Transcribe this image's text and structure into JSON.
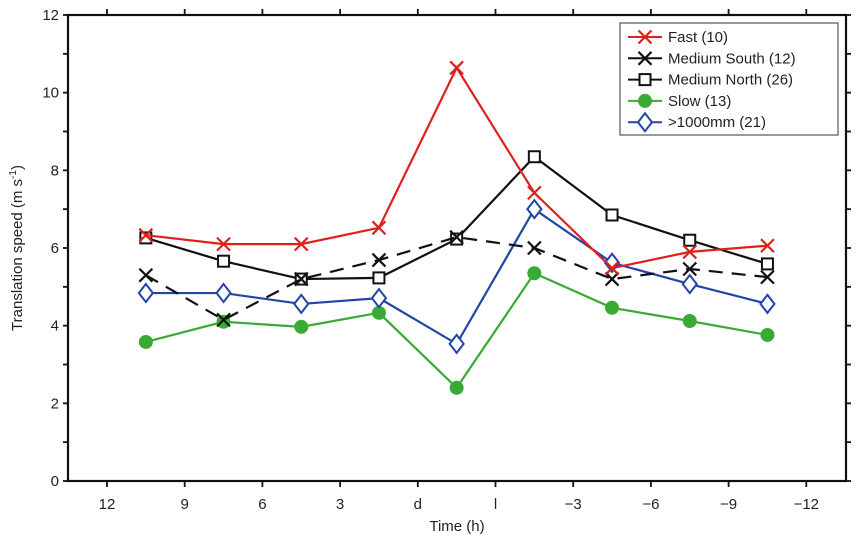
{
  "chart_data": {
    "type": "line",
    "title": "",
    "xlabel": "Time (h)",
    "ylabel": "Translation speed (m s",
    "ylabel_superscript": "-1",
    "ylabel_suffix": ")",
    "ylim": [
      0,
      12
    ],
    "yticks": [
      0,
      2,
      4,
      6,
      8,
      10,
      12
    ],
    "y_minor_step": 1,
    "xtick_labels": [
      "12",
      "9",
      "6",
      "3",
      "d",
      "l",
      "−3",
      "−6",
      "−9",
      "−12"
    ],
    "x_points_between_ticks": true,
    "grid": false,
    "legend_position": "top-right",
    "series": [
      {
        "name": "Fast (10)",
        "color": "#e0201c",
        "marker": "x",
        "dashed": false,
        "values": [
          6.33,
          6.1,
          6.1,
          6.52,
          10.64,
          7.42,
          5.48,
          5.9,
          6.06
        ]
      },
      {
        "name": "Medium South (12)",
        "color": "#111111",
        "marker": "x",
        "dashed": true,
        "values": [
          5.3,
          4.15,
          5.2,
          5.69,
          6.28,
          6.0,
          5.2,
          5.46,
          5.25
        ]
      },
      {
        "name": "Medium North (26)",
        "color": "#111111",
        "marker": "square",
        "dashed": false,
        "values": [
          6.26,
          5.66,
          5.2,
          5.23,
          6.23,
          8.35,
          6.85,
          6.2,
          5.59
        ]
      },
      {
        "name": "Slow (13)",
        "color": "#3aaa35",
        "marker": "circle",
        "dashed": false,
        "values": [
          3.58,
          4.1,
          3.97,
          4.33,
          2.4,
          5.35,
          4.46,
          4.12,
          3.76
        ]
      },
      {
        "name": ">1000mm (21)",
        "color": "#2344a8",
        "marker": "diamond",
        "dashed": false,
        "values": [
          4.84,
          4.84,
          4.56,
          4.71,
          3.53,
          7.0,
          5.62,
          5.07,
          4.56
        ]
      }
    ]
  }
}
